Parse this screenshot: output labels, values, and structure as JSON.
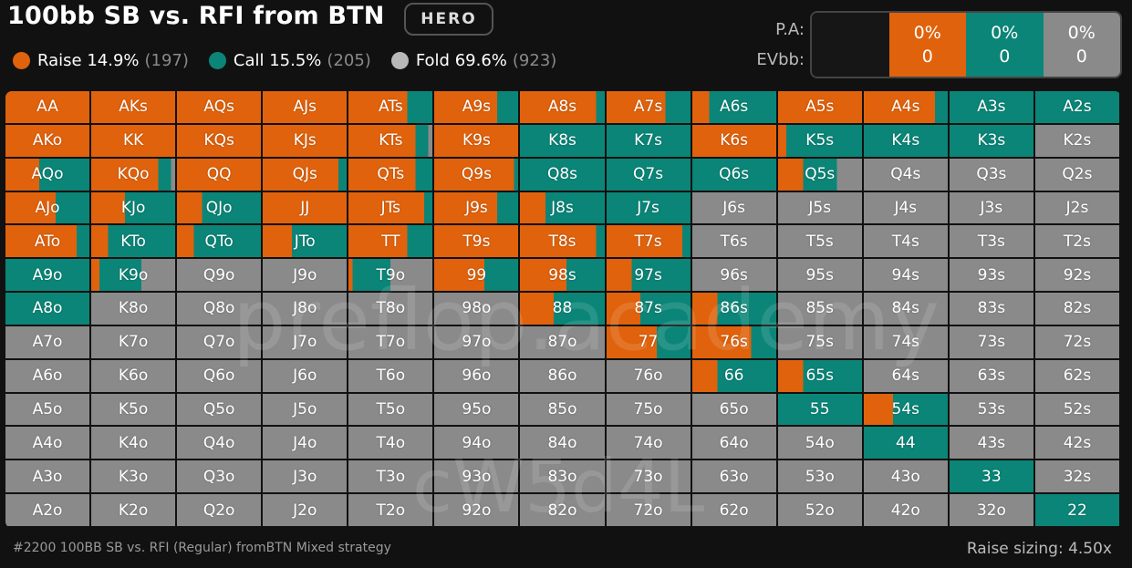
{
  "header": {
    "title": "100bb SB vs. RFI from BTN",
    "badge": "HERO"
  },
  "legend": [
    {
      "name": "raise",
      "label": "Raise 14.9%",
      "count": "(197)",
      "color": "#e0620c"
    },
    {
      "name": "call",
      "label": "Call 15.5%",
      "count": "(205)",
      "color": "#0b8577"
    },
    {
      "name": "fold",
      "label": "Fold 69.6%",
      "count": "(923)",
      "color": "#b8b8b8"
    }
  ],
  "summary": {
    "pa_label": "P.A:",
    "evbb_label": "EVbb:",
    "raise": {
      "pct": "0%",
      "ev": "0",
      "color": "#e0620c"
    },
    "call": {
      "pct": "0%",
      "ev": "0",
      "color": "#0b8577"
    },
    "fold": {
      "pct": "0%",
      "ev": "0",
      "color": "#8a8a8a"
    }
  },
  "colors": {
    "raise": "#e0620c",
    "call": "#0b8577",
    "fold": "#8a8a8a"
  },
  "grid": {
    "rows": [
      [
        "AA",
        "AKs",
        "AQs",
        "AJs",
        "ATs",
        "A9s",
        "A8s",
        "A7s",
        "A6s",
        "A5s",
        "A4s",
        "A3s",
        "A2s"
      ],
      [
        "AKo",
        "KK",
        "KQs",
        "KJs",
        "KTs",
        "K9s",
        "K8s",
        "K7s",
        "K6s",
        "K5s",
        "K4s",
        "K3s",
        "K2s"
      ],
      [
        "AQo",
        "KQo",
        "QQ",
        "QJs",
        "QTs",
        "Q9s",
        "Q8s",
        "Q7s",
        "Q6s",
        "Q5s",
        "Q4s",
        "Q3s",
        "Q2s"
      ],
      [
        "AJo",
        "KJo",
        "QJo",
        "JJ",
        "JTs",
        "J9s",
        "J8s",
        "J7s",
        "J6s",
        "J5s",
        "J4s",
        "J3s",
        "J2s"
      ],
      [
        "ATo",
        "KTo",
        "QTo",
        "JTo",
        "TT",
        "T9s",
        "T8s",
        "T7s",
        "T6s",
        "T5s",
        "T4s",
        "T3s",
        "T2s"
      ],
      [
        "A9o",
        "K9o",
        "Q9o",
        "J9o",
        "T9o",
        "99",
        "98s",
        "97s",
        "96s",
        "95s",
        "94s",
        "93s",
        "92s"
      ],
      [
        "A8o",
        "K8o",
        "Q8o",
        "J8o",
        "T8o",
        "98o",
        "88",
        "87s",
        "86s",
        "85s",
        "84s",
        "83s",
        "82s"
      ],
      [
        "A7o",
        "K7o",
        "Q7o",
        "J7o",
        "T7o",
        "97o",
        "87o",
        "77",
        "76s",
        "75s",
        "74s",
        "73s",
        "72s"
      ],
      [
        "A6o",
        "K6o",
        "Q6o",
        "J6o",
        "T6o",
        "96o",
        "86o",
        "76o",
        "66",
        "65s",
        "64s",
        "63s",
        "62s"
      ],
      [
        "A5o",
        "K5o",
        "Q5o",
        "J5o",
        "T5o",
        "95o",
        "85o",
        "75o",
        "65o",
        "55",
        "54s",
        "53s",
        "52s"
      ],
      [
        "A4o",
        "K4o",
        "Q4o",
        "J4o",
        "T4o",
        "94o",
        "84o",
        "74o",
        "64o",
        "54o",
        "44",
        "43s",
        "42s"
      ],
      [
        "A3o",
        "K3o",
        "Q3o",
        "J3o",
        "T3o",
        "93o",
        "83o",
        "73o",
        "63o",
        "53o",
        "43o",
        "33",
        "32s"
      ],
      [
        "A2o",
        "K2o",
        "Q2o",
        "J2o",
        "T2o",
        "92o",
        "82o",
        "72o",
        "62o",
        "52o",
        "42o",
        "32o",
        "22"
      ]
    ],
    "strategy": [
      [
        [
          1,
          0,
          0
        ],
        [
          1,
          0,
          0
        ],
        [
          1,
          0,
          0
        ],
        [
          1,
          0,
          0
        ],
        [
          0.7,
          0.3,
          0
        ],
        [
          0.75,
          0.25,
          0
        ],
        [
          0.9,
          0.1,
          0
        ],
        [
          0.7,
          0.3,
          0
        ],
        [
          0.2,
          0.8,
          0
        ],
        [
          1,
          0,
          0
        ],
        [
          0.85,
          0.15,
          0
        ],
        [
          0,
          1,
          0
        ],
        [
          0,
          1,
          0
        ]
      ],
      [
        [
          1,
          0,
          0
        ],
        [
          1,
          0,
          0
        ],
        [
          1,
          0,
          0
        ],
        [
          1,
          0,
          0
        ],
        [
          0.8,
          0.15,
          0.05
        ],
        [
          1,
          0,
          0
        ],
        [
          0,
          1,
          0
        ],
        [
          0,
          1,
          0
        ],
        [
          1,
          0,
          0
        ],
        [
          0.1,
          0.9,
          0
        ],
        [
          0,
          1,
          0
        ],
        [
          0,
          1,
          0
        ],
        [
          0,
          0,
          1
        ]
      ],
      [
        [
          0.4,
          0.6,
          0
        ],
        [
          0.8,
          0.15,
          0.05
        ],
        [
          1,
          0,
          0
        ],
        [
          0.9,
          0.1,
          0
        ],
        [
          0.8,
          0.2,
          0
        ],
        [
          0.95,
          0.05,
          0
        ],
        [
          0,
          1,
          0
        ],
        [
          0,
          1,
          0
        ],
        [
          0,
          1,
          0
        ],
        [
          0.3,
          0.4,
          0.3
        ],
        [
          0,
          0,
          1
        ],
        [
          0,
          0,
          1
        ],
        [
          0,
          0,
          1
        ]
      ],
      [
        [
          0.6,
          0.4,
          0
        ],
        [
          0.4,
          0.6,
          0
        ],
        [
          0.3,
          0.7,
          0
        ],
        [
          1,
          0,
          0
        ],
        [
          0.9,
          0.1,
          0
        ],
        [
          0.75,
          0.25,
          0
        ],
        [
          0.3,
          0.7,
          0
        ],
        [
          0,
          1,
          0
        ],
        [
          0,
          0,
          1
        ],
        [
          0,
          0,
          1
        ],
        [
          0,
          0,
          1
        ],
        [
          0,
          0,
          1
        ],
        [
          0,
          0,
          1
        ]
      ],
      [
        [
          0.85,
          0.15,
          0
        ],
        [
          0.2,
          0.8,
          0
        ],
        [
          0.2,
          0.8,
          0
        ],
        [
          0.35,
          0.65,
          0
        ],
        [
          0.7,
          0.3,
          0
        ],
        [
          1,
          0,
          0
        ],
        [
          0.9,
          0.1,
          0
        ],
        [
          0.9,
          0.1,
          0
        ],
        [
          0,
          0,
          1
        ],
        [
          0,
          0,
          1
        ],
        [
          0,
          0,
          1
        ],
        [
          0,
          0,
          1
        ],
        [
          0,
          0,
          1
        ]
      ],
      [
        [
          0,
          1,
          0
        ],
        [
          0.1,
          0.5,
          0.4
        ],
        [
          0,
          0,
          1
        ],
        [
          0,
          0,
          1
        ],
        [
          0.05,
          0.45,
          0.5
        ],
        [
          0.6,
          0.4,
          0
        ],
        [
          0.55,
          0.45,
          0
        ],
        [
          0.3,
          0.7,
          0
        ],
        [
          0,
          0,
          1
        ],
        [
          0,
          0,
          1
        ],
        [
          0,
          0,
          1
        ],
        [
          0,
          0,
          1
        ],
        [
          0,
          0,
          1
        ]
      ],
      [
        [
          0,
          1,
          0
        ],
        [
          0,
          0,
          1
        ],
        [
          0,
          0,
          1
        ],
        [
          0,
          0,
          1
        ],
        [
          0,
          0,
          1
        ],
        [
          0,
          0,
          1
        ],
        [
          0.4,
          0.6,
          0
        ],
        [
          0.4,
          0.6,
          0
        ],
        [
          0.3,
          0.7,
          0
        ],
        [
          0,
          0,
          1
        ],
        [
          0,
          0,
          1
        ],
        [
          0,
          0,
          1
        ],
        [
          0,
          0,
          1
        ]
      ],
      [
        [
          0,
          0,
          1
        ],
        [
          0,
          0,
          1
        ],
        [
          0,
          0,
          1
        ],
        [
          0,
          0,
          1
        ],
        [
          0,
          0,
          1
        ],
        [
          0,
          0,
          1
        ],
        [
          0,
          0,
          1
        ],
        [
          0.6,
          0.4,
          0
        ],
        [
          0.7,
          0.3,
          0
        ],
        [
          0,
          0,
          1
        ],
        [
          0,
          0,
          1
        ],
        [
          0,
          0,
          1
        ],
        [
          0,
          0,
          1
        ]
      ],
      [
        [
          0,
          0,
          1
        ],
        [
          0,
          0,
          1
        ],
        [
          0,
          0,
          1
        ],
        [
          0,
          0,
          1
        ],
        [
          0,
          0,
          1
        ],
        [
          0,
          0,
          1
        ],
        [
          0,
          0,
          1
        ],
        [
          0,
          0,
          1
        ],
        [
          0.3,
          0.7,
          0
        ],
        [
          0.3,
          0.7,
          0
        ],
        [
          0,
          0,
          1
        ],
        [
          0,
          0,
          1
        ],
        [
          0,
          0,
          1
        ]
      ],
      [
        [
          0,
          0,
          1
        ],
        [
          0,
          0,
          1
        ],
        [
          0,
          0,
          1
        ],
        [
          0,
          0,
          1
        ],
        [
          0,
          0,
          1
        ],
        [
          0,
          0,
          1
        ],
        [
          0,
          0,
          1
        ],
        [
          0,
          0,
          1
        ],
        [
          0,
          0,
          1
        ],
        [
          0,
          1,
          0
        ],
        [
          0.35,
          0.65,
          0
        ],
        [
          0,
          0,
          1
        ],
        [
          0,
          0,
          1
        ]
      ],
      [
        [
          0,
          0,
          1
        ],
        [
          0,
          0,
          1
        ],
        [
          0,
          0,
          1
        ],
        [
          0,
          0,
          1
        ],
        [
          0,
          0,
          1
        ],
        [
          0,
          0,
          1
        ],
        [
          0,
          0,
          1
        ],
        [
          0,
          0,
          1
        ],
        [
          0,
          0,
          1
        ],
        [
          0,
          0,
          1
        ],
        [
          0,
          1,
          0
        ],
        [
          0,
          0,
          1
        ],
        [
          0,
          0,
          1
        ]
      ],
      [
        [
          0,
          0,
          1
        ],
        [
          0,
          0,
          1
        ],
        [
          0,
          0,
          1
        ],
        [
          0,
          0,
          1
        ],
        [
          0,
          0,
          1
        ],
        [
          0,
          0,
          1
        ],
        [
          0,
          0,
          1
        ],
        [
          0,
          0,
          1
        ],
        [
          0,
          0,
          1
        ],
        [
          0,
          0,
          1
        ],
        [
          0,
          0,
          1
        ],
        [
          0,
          1,
          0
        ],
        [
          0,
          0,
          1
        ]
      ],
      [
        [
          0,
          0,
          1
        ],
        [
          0,
          0,
          1
        ],
        [
          0,
          0,
          1
        ],
        [
          0,
          0,
          1
        ],
        [
          0,
          0,
          1
        ],
        [
          0,
          0,
          1
        ],
        [
          0,
          0,
          1
        ],
        [
          0,
          0,
          1
        ],
        [
          0,
          0,
          1
        ],
        [
          0,
          0,
          1
        ],
        [
          0,
          0,
          1
        ],
        [
          0,
          0,
          1
        ],
        [
          0,
          1,
          0
        ]
      ]
    ]
  },
  "watermark": {
    "line1": "preflop.academy",
    "line2": "cW5d4L"
  },
  "footer": {
    "left": "#2200 100BB SB vs. RFI (Regular) fromBTN Mixed strategy",
    "right": "Raise sizing: 4.50x"
  }
}
